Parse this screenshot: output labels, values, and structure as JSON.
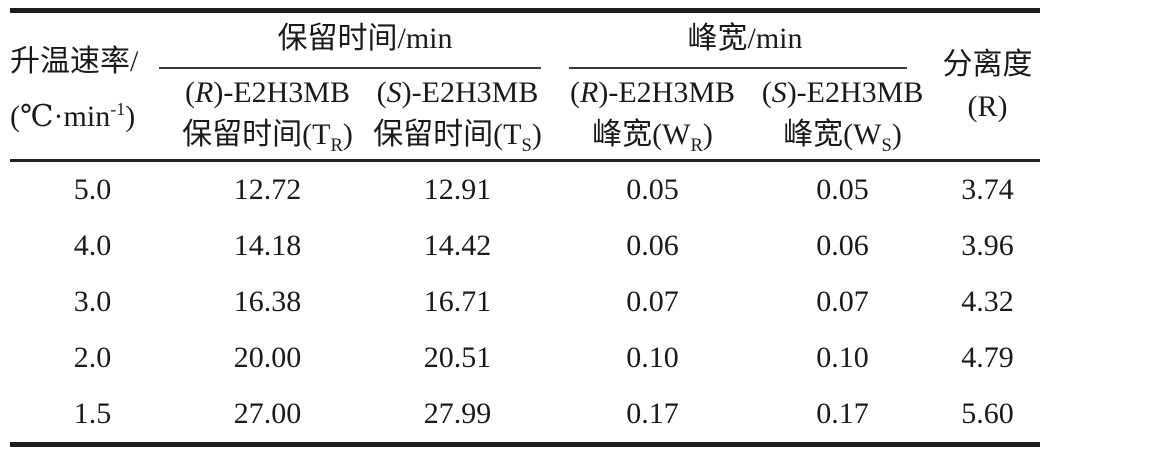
{
  "table": {
    "header": {
      "rate_col": {
        "line1": "升温速率/",
        "unit_pre": "(℃·min",
        "unit_sup": "-1",
        "unit_post": ")"
      },
      "group_retention": "保留时间/min",
      "group_peakwidth": "峰宽/min",
      "sub_r_retention": {
        "l1_pre": "(",
        "l1_enantiomer": "R",
        "l1_post": ")-E2H3MB",
        "l2_pre": "保留时间(T",
        "l2_sub": "R",
        "l2_post": ")"
      },
      "sub_s_retention": {
        "l1_pre": "(",
        "l1_enantiomer": "S",
        "l1_post": ")-E2H3MB",
        "l2_pre": "保留时间(T",
        "l2_sub": "S",
        "l2_post": ")"
      },
      "sub_r_width": {
        "l1_pre": "(",
        "l1_enantiomer": "R",
        "l1_post": ")-E2H3MB",
        "l2_pre": "峰宽(W",
        "l2_sub": "R",
        "l2_post": ")"
      },
      "sub_s_width": {
        "l1_pre": "(",
        "l1_enantiomer": "S",
        "l1_post": ")-E2H3MB",
        "l2_pre": "峰宽(W",
        "l2_sub": "S",
        "l2_post": ")"
      },
      "resolution_col": {
        "line1": "分离度",
        "line2": "(R)"
      }
    },
    "rows": [
      [
        "5.0",
        "12.72",
        "12.91",
        "0.05",
        "0.05",
        "3.74"
      ],
      [
        "4.0",
        "14.18",
        "14.42",
        "0.06",
        "0.06",
        "3.96"
      ],
      [
        "3.0",
        "16.38",
        "16.71",
        "0.07",
        "0.07",
        "4.32"
      ],
      [
        "2.0",
        "20.00",
        "20.51",
        "0.10",
        "0.10",
        "4.79"
      ],
      [
        "1.5",
        "27.00",
        "27.99",
        "0.17",
        "0.17",
        "5.60"
      ]
    ],
    "colors": {
      "text": "#1a1a1a",
      "rule": "#1d1d1f",
      "background": "#ffffff"
    }
  }
}
